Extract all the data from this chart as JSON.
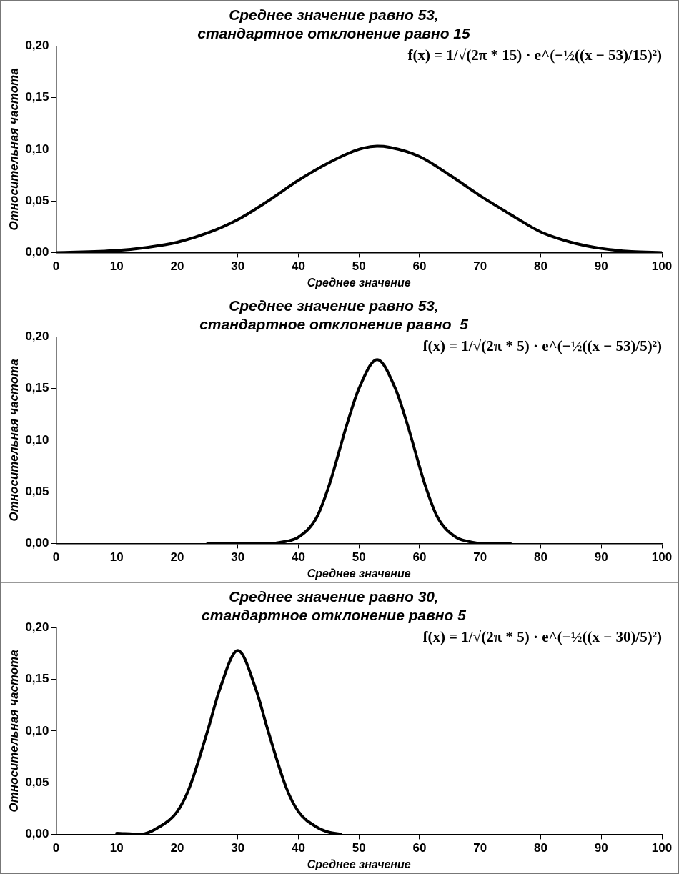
{
  "chart_data": [
    {
      "type": "line",
      "title": "Среднее значение равно 53,\nстандартное отклонение равно 15",
      "xlabel": "Среднее значение",
      "ylabel": "Относительная частота",
      "annotations": [
        "f(x) = 1/√(2π * 15) · e^(−½((x − 53)/15)²)"
      ],
      "xlim": [
        0,
        100
      ],
      "xticks": [
        0,
        10,
        20,
        30,
        40,
        50,
        60,
        70,
        80,
        90,
        100
      ],
      "ylim": [
        0,
        0.2
      ],
      "yticks": [
        {
          "value": 0,
          "label": "0,00"
        },
        {
          "value": 0.05,
          "label": "0,05"
        },
        {
          "value": 0.1,
          "label": "0,10"
        },
        {
          "value": 0.15,
          "label": "0,15"
        },
        {
          "value": 0.2,
          "label": "0,20"
        }
      ],
      "grid": false,
      "legend": false,
      "marker": "none",
      "line_style": "solid",
      "series": [
        {
          "color": "#000000",
          "x": [
            0,
            10,
            15,
            20,
            25,
            30,
            35,
            40,
            45,
            50,
            53,
            55,
            60,
            65,
            70,
            75,
            80,
            85,
            90,
            95,
            100
          ],
          "values": [
            0,
            0.002,
            0.005,
            0.01,
            0.019,
            0.032,
            0.05,
            0.07,
            0.087,
            0.1,
            0.103,
            0.102,
            0.093,
            0.075,
            0.055,
            0.037,
            0.02,
            0.01,
            0.004,
            0.001,
            0
          ]
        }
      ]
    },
    {
      "type": "line",
      "title": "Среднее значение равно 53,\nстандартное отклонение равно  5",
      "xlabel": "Среднее значение",
      "ylabel": "Относительная частота",
      "annotations": [
        "f(x) = 1/√(2π * 5) · e^(−½((x − 53)/5)²)"
      ],
      "xlim": [
        0,
        100
      ],
      "xticks": [
        0,
        10,
        20,
        30,
        40,
        50,
        60,
        70,
        80,
        90,
        100
      ],
      "ylim": [
        0,
        0.2
      ],
      "yticks": [
        {
          "value": 0,
          "label": "0,00"
        },
        {
          "value": 0.05,
          "label": "0,05"
        },
        {
          "value": 0.1,
          "label": "0,10"
        },
        {
          "value": 0.15,
          "label": "0,15"
        },
        {
          "value": 0.2,
          "label": "0,20"
        }
      ],
      "grid": false,
      "legend": false,
      "marker": "none",
      "line_style": "solid",
      "series": [
        {
          "color": "#000000",
          "x": [
            25,
            35,
            38,
            40,
            43,
            45,
            48,
            50,
            53,
            56,
            58,
            61,
            63,
            66,
            68,
            70,
            75
          ],
          "values": [
            0,
            0,
            0.002,
            0.006,
            0.025,
            0.055,
            0.115,
            0.15,
            0.178,
            0.15,
            0.115,
            0.055,
            0.025,
            0.006,
            0.002,
            0,
            0
          ]
        }
      ]
    },
    {
      "type": "line",
      "title": "Среднее значение равно 30,\nстандартное отклонение равно 5",
      "xlabel": "Среднее значение",
      "ylabel": "Относительная частота",
      "annotations": [
        "f(x) = 1/√(2π * 5) · e^(−½((x − 30)/5)²)"
      ],
      "xlim": [
        0,
        100
      ],
      "xticks": [
        0,
        10,
        20,
        30,
        40,
        50,
        60,
        70,
        80,
        90,
        100
      ],
      "ylim": [
        0,
        0.2
      ],
      "yticks": [
        {
          "value": 0,
          "label": "0,00"
        },
        {
          "value": 0.05,
          "label": "0,05"
        },
        {
          "value": 0.1,
          "label": "0,10"
        },
        {
          "value": 0.15,
          "label": "0,15"
        },
        {
          "value": 0.2,
          "label": "0,20"
        }
      ],
      "grid": false,
      "legend": false,
      "marker": "none",
      "line_style": "solid",
      "series": [
        {
          "color": "#000000",
          "x": [
            10,
            14,
            17,
            20,
            22,
            25,
            27,
            30,
            33,
            35,
            38,
            40,
            43,
            45,
            47
          ],
          "values": [
            0.001,
            0,
            0.007,
            0.022,
            0.045,
            0.1,
            0.14,
            0.178,
            0.14,
            0.1,
            0.045,
            0.022,
            0.007,
            0.002,
            0
          ]
        }
      ]
    }
  ]
}
